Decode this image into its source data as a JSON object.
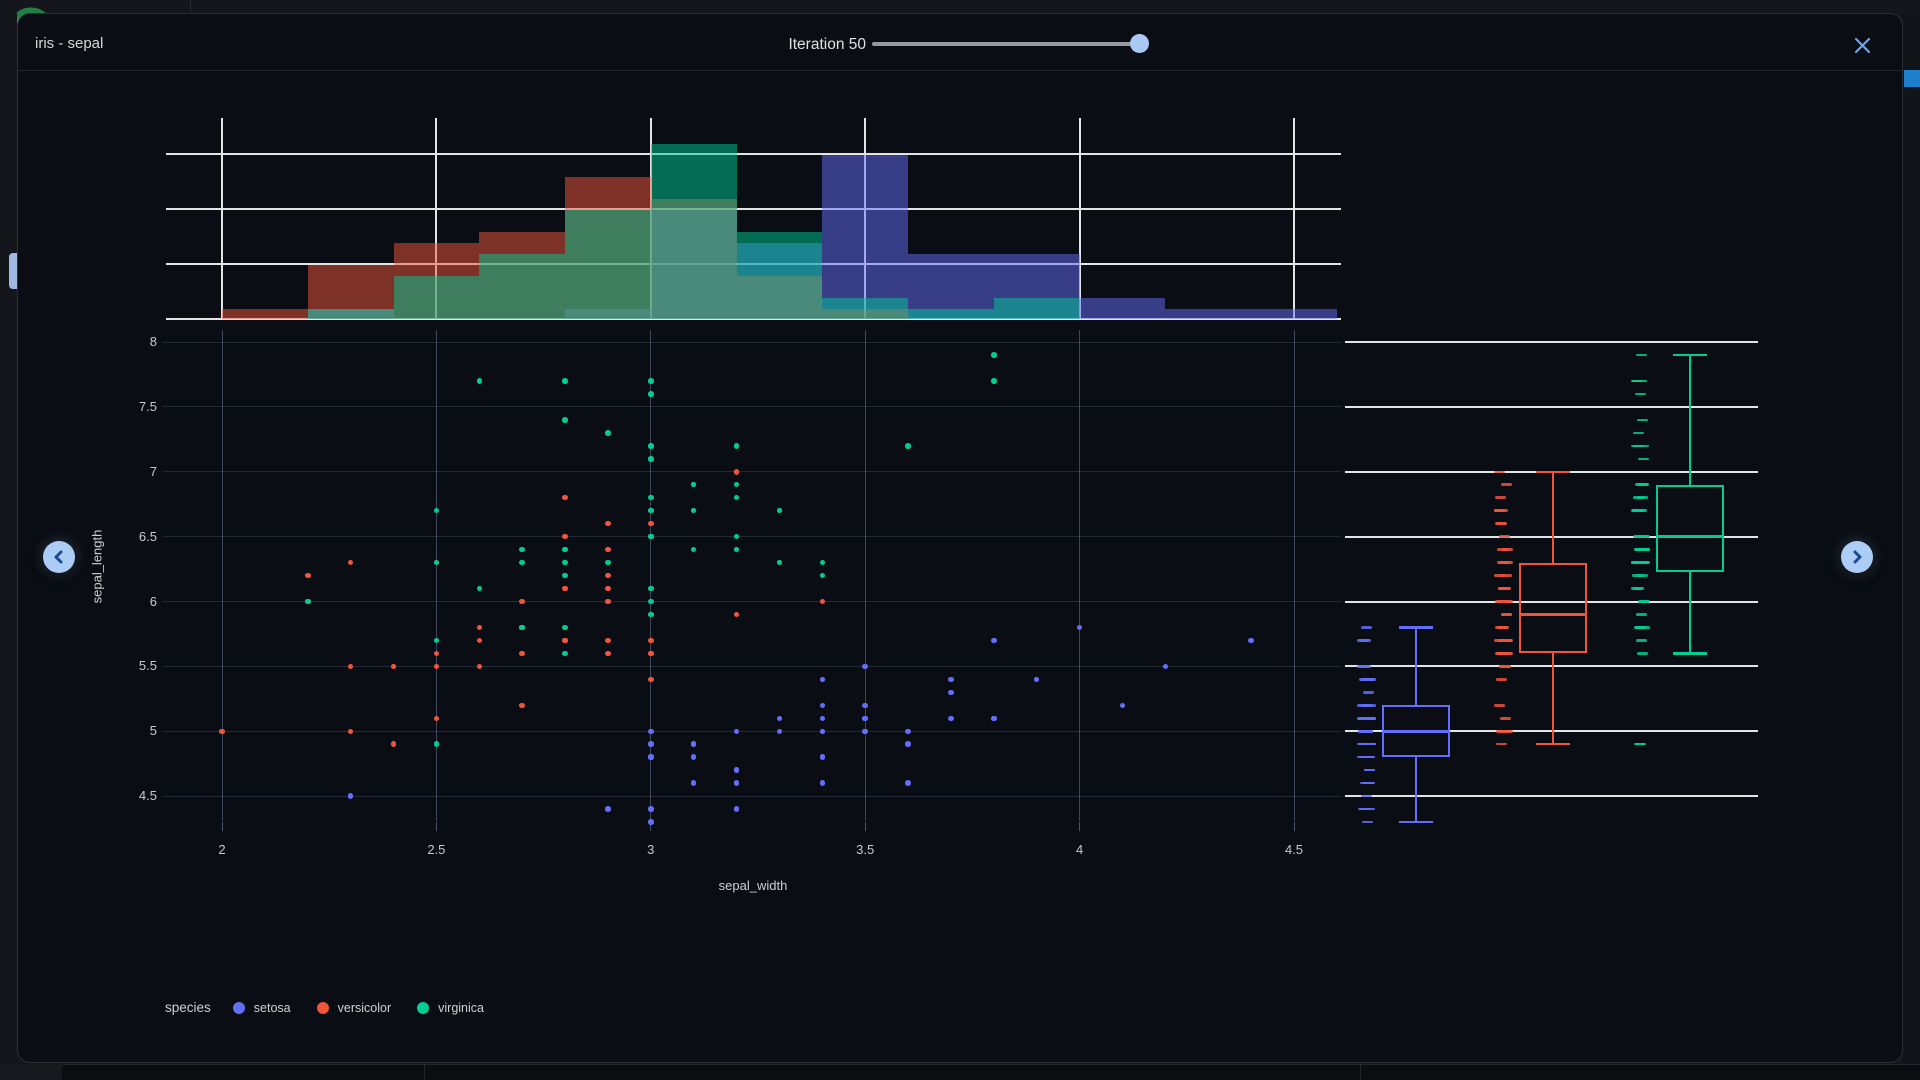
{
  "window": {
    "title": "iris - sepal"
  },
  "toolbar": {
    "slider_label": "Iteration 50",
    "slider_percent": 100
  },
  "icons": {
    "close": "close-x",
    "prev": "chevron-left",
    "next": "chevron-right",
    "logo": "panel-swirl-logo"
  },
  "chart_data": {
    "type": "scatter",
    "title": "",
    "xlabel": "sepal_width",
    "ylabel": "sepal_length",
    "x_ticks": [
      2,
      2.5,
      3,
      3.5,
      4,
      4.5
    ],
    "y_ticks": [
      8,
      7.5,
      7,
      6.5,
      6,
      5.5,
      5,
      4.5
    ],
    "xlim": [
      1.87,
      4.61
    ],
    "ylim": [
      4.31,
      8.09
    ],
    "grid": true,
    "legend": {
      "title": "species",
      "position": "bottom-left",
      "entries": [
        {
          "label": "setosa",
          "color": "#636efa"
        },
        {
          "label": "versicolor",
          "color": "#ef553b"
        },
        {
          "label": "virginica",
          "color": "#00cc96"
        }
      ]
    },
    "marginal_x": {
      "type": "histogram",
      "bin_start": 2.0,
      "bin_width": 0.2,
      "opacity": 0.5,
      "count_gridlines": [
        5,
        10,
        15
      ]
    },
    "marginal_y": {
      "type": "box",
      "stats": [
        {
          "name": "setosa",
          "lo": 4.3,
          "q1": 4.8,
          "med": 5.0,
          "q3": 5.2,
          "hi": 5.8,
          "outliers": []
        },
        {
          "name": "versicolor",
          "lo": 4.9,
          "q1": 5.6,
          "med": 5.9,
          "q3": 6.3,
          "hi": 7.0,
          "outliers": []
        },
        {
          "name": "virginica",
          "lo": 5.6,
          "q1": 6.225,
          "med": 6.5,
          "q3": 6.9,
          "hi": 7.9,
          "outliers": [
            4.9
          ]
        }
      ]
    },
    "series": [
      {
        "name": "setosa",
        "color": "#636efa",
        "points": [
          [
            3.5,
            5.1
          ],
          [
            3.0,
            4.9
          ],
          [
            3.2,
            4.7
          ],
          [
            3.1,
            4.6
          ],
          [
            3.6,
            5.0
          ],
          [
            3.9,
            5.4
          ],
          [
            3.4,
            4.6
          ],
          [
            3.4,
            5.0
          ],
          [
            2.9,
            4.4
          ],
          [
            3.1,
            4.9
          ],
          [
            3.7,
            5.4
          ],
          [
            3.4,
            4.8
          ],
          [
            3.0,
            4.8
          ],
          [
            3.0,
            4.3
          ],
          [
            4.0,
            5.8
          ],
          [
            4.4,
            5.7
          ],
          [
            3.9,
            5.4
          ],
          [
            3.5,
            5.1
          ],
          [
            3.8,
            5.7
          ],
          [
            3.8,
            5.1
          ],
          [
            3.4,
            5.4
          ],
          [
            3.7,
            5.1
          ],
          [
            3.6,
            4.6
          ],
          [
            3.3,
            5.1
          ],
          [
            3.4,
            4.8
          ],
          [
            3.0,
            5.0
          ],
          [
            3.4,
            5.0
          ],
          [
            3.5,
            5.2
          ],
          [
            3.4,
            5.2
          ],
          [
            3.2,
            4.7
          ],
          [
            3.1,
            4.8
          ],
          [
            3.4,
            5.4
          ],
          [
            4.1,
            5.2
          ],
          [
            4.2,
            5.5
          ],
          [
            3.1,
            4.9
          ],
          [
            3.2,
            5.0
          ],
          [
            3.5,
            5.5
          ],
          [
            3.6,
            4.9
          ],
          [
            3.0,
            4.4
          ],
          [
            3.4,
            5.1
          ],
          [
            3.5,
            5.0
          ],
          [
            2.3,
            4.5
          ],
          [
            3.2,
            4.4
          ],
          [
            3.5,
            5.0
          ],
          [
            3.8,
            5.1
          ],
          [
            3.0,
            4.8
          ],
          [
            3.8,
            5.1
          ],
          [
            3.2,
            4.6
          ],
          [
            3.7,
            5.3
          ],
          [
            3.3,
            5.0
          ]
        ]
      },
      {
        "name": "versicolor",
        "color": "#ef553b",
        "points": [
          [
            3.2,
            7.0
          ],
          [
            3.2,
            6.4
          ],
          [
            3.1,
            6.9
          ],
          [
            2.3,
            5.5
          ],
          [
            2.8,
            6.5
          ],
          [
            2.8,
            5.7
          ],
          [
            3.3,
            6.3
          ],
          [
            2.4,
            4.9
          ],
          [
            2.9,
            6.6
          ],
          [
            2.7,
            5.2
          ],
          [
            2.0,
            5.0
          ],
          [
            3.0,
            5.9
          ],
          [
            2.2,
            6.0
          ],
          [
            2.9,
            6.1
          ],
          [
            2.9,
            5.6
          ],
          [
            3.1,
            6.7
          ],
          [
            3.0,
            5.6
          ],
          [
            2.7,
            5.8
          ],
          [
            2.2,
            6.2
          ],
          [
            2.5,
            5.6
          ],
          [
            3.2,
            5.9
          ],
          [
            2.8,
            6.1
          ],
          [
            2.5,
            6.3
          ],
          [
            2.8,
            6.1
          ],
          [
            2.9,
            6.4
          ],
          [
            3.0,
            6.6
          ],
          [
            2.8,
            6.8
          ],
          [
            3.0,
            6.7
          ],
          [
            2.9,
            6.0
          ],
          [
            2.6,
            5.7
          ],
          [
            2.4,
            5.5
          ],
          [
            2.4,
            5.5
          ],
          [
            2.7,
            5.8
          ],
          [
            2.7,
            6.0
          ],
          [
            3.0,
            5.4
          ],
          [
            3.4,
            6.0
          ],
          [
            3.1,
            6.7
          ],
          [
            2.3,
            6.3
          ],
          [
            3.0,
            5.6
          ],
          [
            2.5,
            5.5
          ],
          [
            2.6,
            5.5
          ],
          [
            3.0,
            6.1
          ],
          [
            2.6,
            5.8
          ],
          [
            2.3,
            5.0
          ],
          [
            2.7,
            5.6
          ],
          [
            3.0,
            5.7
          ],
          [
            2.9,
            5.7
          ],
          [
            2.9,
            6.2
          ],
          [
            2.5,
            5.1
          ],
          [
            2.8,
            5.7
          ]
        ]
      },
      {
        "name": "virginica",
        "color": "#00cc96",
        "points": [
          [
            3.3,
            6.3
          ],
          [
            2.7,
            5.8
          ],
          [
            3.0,
            7.1
          ],
          [
            2.9,
            6.3
          ],
          [
            3.0,
            6.5
          ],
          [
            3.0,
            7.6
          ],
          [
            2.5,
            4.9
          ],
          [
            2.9,
            7.3
          ],
          [
            2.5,
            6.7
          ],
          [
            3.6,
            7.2
          ],
          [
            3.2,
            6.5
          ],
          [
            2.7,
            6.4
          ],
          [
            3.0,
            6.8
          ],
          [
            2.5,
            5.7
          ],
          [
            2.8,
            5.8
          ],
          [
            3.2,
            6.4
          ],
          [
            3.0,
            6.5
          ],
          [
            3.8,
            7.7
          ],
          [
            2.6,
            7.7
          ],
          [
            2.2,
            6.0
          ],
          [
            3.2,
            6.9
          ],
          [
            2.8,
            5.6
          ],
          [
            2.8,
            7.7
          ],
          [
            2.7,
            6.3
          ],
          [
            3.3,
            6.7
          ],
          [
            3.2,
            7.2
          ],
          [
            2.8,
            6.2
          ],
          [
            3.0,
            6.1
          ],
          [
            2.8,
            6.4
          ],
          [
            3.0,
            7.2
          ],
          [
            2.8,
            7.4
          ],
          [
            3.8,
            7.9
          ],
          [
            2.8,
            6.4
          ],
          [
            2.8,
            6.3
          ],
          [
            2.6,
            6.1
          ],
          [
            3.0,
            7.7
          ],
          [
            3.4,
            6.3
          ],
          [
            3.1,
            6.4
          ],
          [
            3.0,
            6.0
          ],
          [
            3.1,
            6.9
          ],
          [
            3.1,
            6.7
          ],
          [
            3.1,
            6.9
          ],
          [
            2.7,
            5.8
          ],
          [
            3.2,
            6.8
          ],
          [
            3.3,
            6.7
          ],
          [
            3.0,
            6.7
          ],
          [
            2.5,
            6.3
          ],
          [
            3.0,
            6.5
          ],
          [
            3.4,
            6.2
          ],
          [
            3.0,
            5.9
          ]
        ]
      }
    ]
  }
}
